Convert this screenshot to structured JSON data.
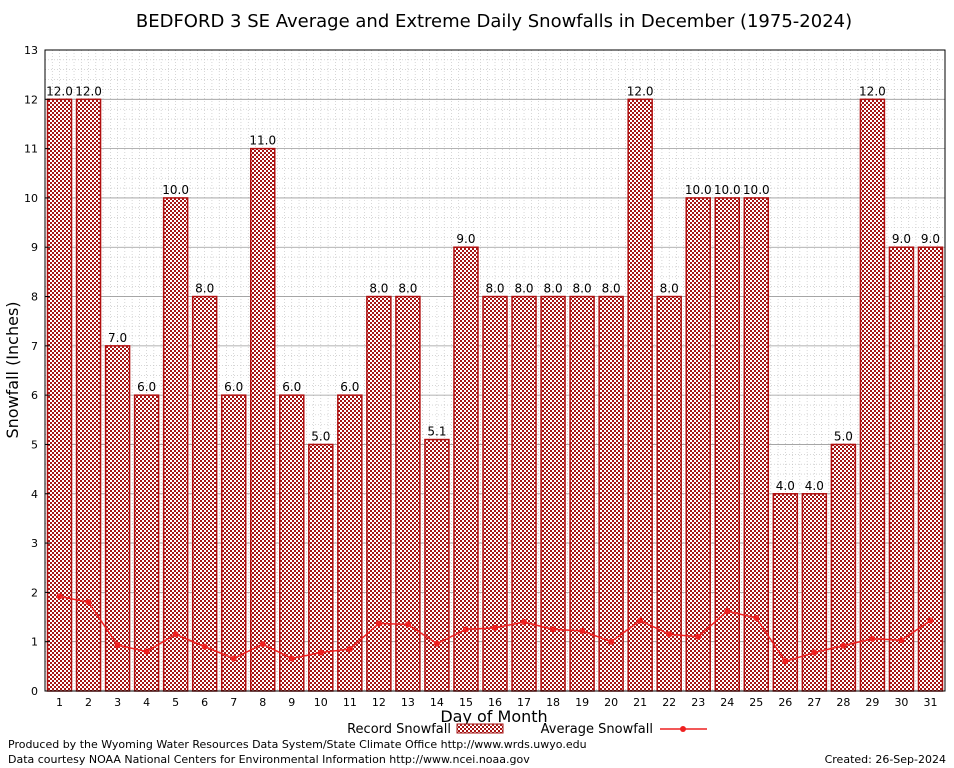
{
  "chart_data": {
    "type": "bar",
    "title": "BEDFORD 3 SE Average and Extreme Daily Snowfalls in December (1975-2024)",
    "xlabel": "Day of Month",
    "ylabel": "Snowfall (Inches)",
    "ylim": [
      0,
      13
    ],
    "yticks": [
      "0",
      "1",
      "2",
      "3",
      "4",
      "5",
      "6",
      "7",
      "8",
      "9",
      "10",
      "11",
      "12",
      "13"
    ],
    "grid": true,
    "legend_position": "bottom",
    "categories": [
      "1",
      "2",
      "3",
      "4",
      "5",
      "6",
      "7",
      "8",
      "9",
      "10",
      "11",
      "12",
      "13",
      "14",
      "15",
      "16",
      "17",
      "18",
      "19",
      "20",
      "21",
      "22",
      "23",
      "24",
      "25",
      "26",
      "27",
      "28",
      "29",
      "30",
      "31"
    ],
    "series": [
      {
        "name": "Record Snowfall",
        "kind": "bar",
        "color": "#b01010",
        "values": [
          12.0,
          12.0,
          7.0,
          6.0,
          10.0,
          8.0,
          6.0,
          11.0,
          6.0,
          5.0,
          6.0,
          8.0,
          8.0,
          5.1,
          9.0,
          8.0,
          8.0,
          8.0,
          8.0,
          8.0,
          12.0,
          8.0,
          10.0,
          10.0,
          10.0,
          4.0,
          4.0,
          5.0,
          12.0,
          9.0,
          9.0
        ],
        "labels": [
          "12.0",
          "12.0",
          "7.0",
          "6.0",
          "10.0",
          "8.0",
          "6.0",
          "11.0",
          "6.0",
          "5.0",
          "6.0",
          "8.0",
          "8.0",
          "5.1",
          "9.0",
          "8.0",
          "8.0",
          "8.0",
          "8.0",
          "8.0",
          "12.0",
          "8.0",
          "10.0",
          "10.0",
          "10.0",
          "4.0",
          "4.0",
          "5.0",
          "12.0",
          "9.0",
          "9.0"
        ]
      },
      {
        "name": "Average Snowfall",
        "kind": "line",
        "color": "#ee2020",
        "values": [
          1.92,
          1.8,
          0.93,
          0.8,
          1.15,
          0.9,
          0.66,
          0.95,
          0.66,
          0.78,
          0.85,
          1.37,
          1.35,
          0.96,
          1.25,
          1.28,
          1.4,
          1.25,
          1.22,
          1.0,
          1.43,
          1.15,
          1.1,
          1.62,
          1.48,
          0.6,
          0.78,
          0.92,
          1.06,
          1.03,
          1.43
        ]
      }
    ]
  },
  "footer": {
    "produced_by": "Produced by the Wyoming Water Resources Data System/State Climate Office http://www.wrds.uwyo.edu",
    "data_courtesy": "Data courtesy NOAA National Centers for Environmental Information http://www.ncei.noaa.gov",
    "created": "Created: 26-Sep-2024"
  }
}
